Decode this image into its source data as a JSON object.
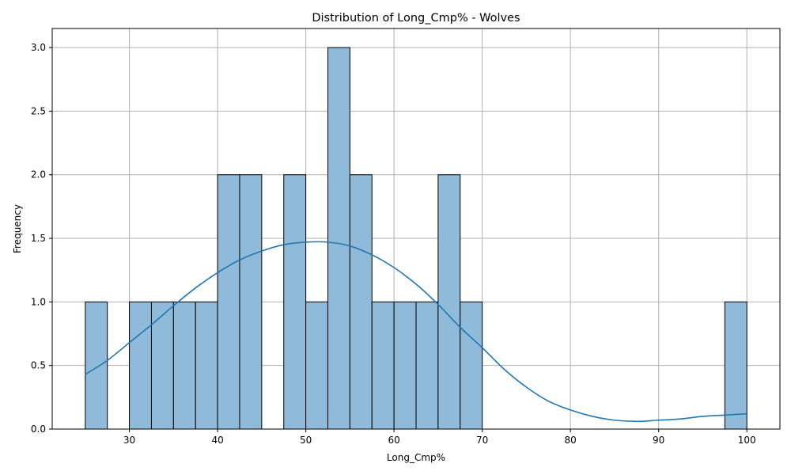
{
  "chart_data": {
    "type": "bar",
    "subtype": "histogram",
    "title": "Distribution of Long_Cmp% - Wolves",
    "xlabel": "Long_Cmp%",
    "ylabel": "Frequency",
    "xlim": [
      21.25,
      103.75
    ],
    "ylim": [
      0,
      3.15
    ],
    "xticks": [
      30,
      40,
      50,
      60,
      70,
      80,
      90,
      100
    ],
    "yticks": [
      0.0,
      0.5,
      1.0,
      1.5,
      2.0,
      2.5,
      3.0
    ],
    "grid": true,
    "bins": [
      {
        "start": 25.0,
        "end": 27.5,
        "count": 1
      },
      {
        "start": 30.0,
        "end": 32.5,
        "count": 1
      },
      {
        "start": 32.5,
        "end": 35.0,
        "count": 1
      },
      {
        "start": 35.0,
        "end": 37.5,
        "count": 1
      },
      {
        "start": 37.5,
        "end": 40.0,
        "count": 1
      },
      {
        "start": 40.0,
        "end": 42.5,
        "count": 2
      },
      {
        "start": 42.5,
        "end": 45.0,
        "count": 2
      },
      {
        "start": 47.5,
        "end": 50.0,
        "count": 2
      },
      {
        "start": 50.0,
        "end": 52.5,
        "count": 1
      },
      {
        "start": 52.5,
        "end": 55.0,
        "count": 3
      },
      {
        "start": 55.0,
        "end": 57.5,
        "count": 2
      },
      {
        "start": 57.5,
        "end": 60.0,
        "count": 1
      },
      {
        "start": 60.0,
        "end": 62.5,
        "count": 1
      },
      {
        "start": 62.5,
        "end": 65.0,
        "count": 1
      },
      {
        "start": 65.0,
        "end": 67.5,
        "count": 2
      },
      {
        "start": 67.5,
        "end": 70.0,
        "count": 1
      },
      {
        "start": 97.5,
        "end": 100.0,
        "count": 1
      }
    ],
    "kde": {
      "x": [
        25,
        27.5,
        30,
        32.5,
        35,
        37.5,
        40,
        42.5,
        45,
        47.5,
        50,
        52.5,
        55,
        57.5,
        60,
        62.5,
        65,
        67.5,
        70,
        72.5,
        75,
        77.5,
        80,
        82.5,
        85,
        87.5,
        90,
        92.5,
        95,
        97.5,
        100
      ],
      "y": [
        0.43,
        0.54,
        0.68,
        0.82,
        0.97,
        1.11,
        1.23,
        1.33,
        1.4,
        1.45,
        1.47,
        1.47,
        1.44,
        1.37,
        1.27,
        1.14,
        0.98,
        0.8,
        0.64,
        0.47,
        0.33,
        0.22,
        0.15,
        0.1,
        0.07,
        0.06,
        0.07,
        0.08,
        0.1,
        0.11,
        0.12
      ]
    },
    "colors": {
      "bar_fill": "#8fbad9",
      "bar_edge": "#000000",
      "kde_line": "#1f77b4",
      "grid": "#b0b0b0"
    }
  }
}
